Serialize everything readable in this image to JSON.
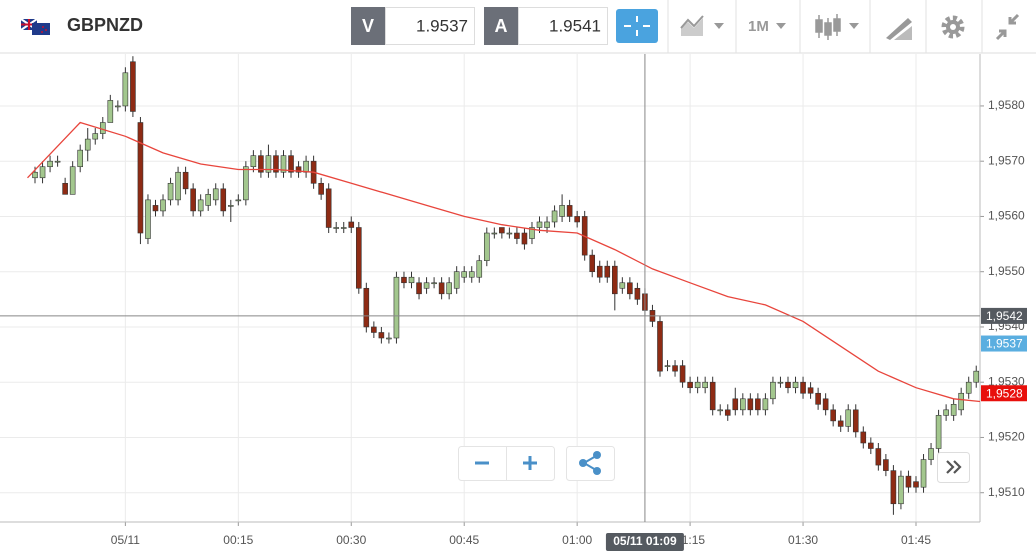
{
  "header": {
    "symbol": "GBPNZD",
    "bid_label": "V",
    "bid": 1.9537,
    "ask_label": "A",
    "ask": 1.9541,
    "timeframe": "1M"
  },
  "chart_data": {
    "type": "candlestick",
    "up_color": "#a3c78e",
    "down_color": "#8e2b14",
    "grid": true,
    "xlim": [
      -16.65,
      113.5
    ],
    "xticks": [
      {
        "value": 0,
        "label": "05/11"
      },
      {
        "value": 15,
        "label": "00:15"
      },
      {
        "value": 30,
        "label": "00:30"
      },
      {
        "value": 45,
        "label": "00:45"
      },
      {
        "value": 60,
        "label": "01:00"
      },
      {
        "value": 75,
        "label": "01:15"
      },
      {
        "value": 90,
        "label": "01:30"
      },
      {
        "value": 105,
        "label": "01:45"
      }
    ],
    "ylim": [
      1.95047,
      1.95894
    ],
    "yticks": [
      {
        "value": 1.951,
        "label": "1,9510"
      },
      {
        "value": 1.952,
        "label": "1,9520"
      },
      {
        "value": 1.953,
        "label": "1,9530"
      },
      {
        "value": 1.954,
        "label": "1,9540"
      },
      {
        "value": 1.955,
        "label": "1,9550"
      },
      {
        "value": 1.956,
        "label": "1,9560"
      },
      {
        "value": 1.957,
        "label": "1,9570"
      },
      {
        "value": 1.958,
        "label": "1,9580"
      }
    ],
    "x": [
      -12,
      -11,
      -10,
      -9,
      -8,
      -7,
      -6,
      -5,
      -4,
      -3,
      -2,
      -1,
      0,
      1,
      2,
      3,
      4,
      5,
      6,
      7,
      8,
      9,
      10,
      11,
      12,
      13,
      14,
      15,
      16,
      17,
      18,
      19,
      20,
      21,
      22,
      23,
      24,
      25,
      26,
      27,
      28,
      29,
      30,
      31,
      32,
      33,
      34,
      35,
      36,
      37,
      38,
      39,
      40,
      41,
      42,
      43,
      44,
      45,
      46,
      47,
      48,
      49,
      50,
      51,
      52,
      53,
      54,
      55,
      56,
      57,
      58,
      59,
      60,
      61,
      62,
      63,
      64,
      65,
      66,
      67,
      68,
      69,
      70,
      71,
      72,
      73,
      74,
      75,
      76,
      77,
      78,
      79,
      80,
      81,
      82,
      83,
      84,
      85,
      86,
      87,
      88,
      89,
      90,
      91,
      92,
      93,
      94,
      95,
      96,
      97,
      98,
      99,
      100,
      101,
      102,
      103,
      104,
      105,
      106,
      107,
      108,
      109,
      110,
      111,
      112,
      113
    ],
    "open": [
      1.9567,
      1.9567,
      1.9569,
      1.957,
      1.9566,
      1.9564,
      1.9569,
      1.9572,
      1.9574,
      1.9575,
      1.9577,
      1.958,
      1.958,
      1.9588,
      1.9577,
      1.9556,
      1.9562,
      1.9561,
      1.9563,
      1.9563,
      1.9568,
      1.9565,
      1.9561,
      1.9562,
      1.9563,
      1.9565,
      1.9562,
      1.9563,
      1.9563,
      1.9569,
      1.9571,
      1.9568,
      1.9571,
      1.9568,
      1.9571,
      1.9569,
      1.9568,
      1.957,
      1.9566,
      1.9565,
      1.9558,
      1.9558,
      1.9559,
      1.9558,
      1.9547,
      1.954,
      1.9539,
      1.9538,
      1.9538,
      1.9549,
      1.9548,
      1.9548,
      1.9547,
      1.9548,
      1.9548,
      1.9546,
      1.9547,
      1.9549,
      1.9549,
      1.9549,
      1.9552,
      1.9557,
      1.9558,
      1.9557,
      1.9557,
      1.9557,
      1.9556,
      1.9558,
      1.9558,
      1.9559,
      1.956,
      1.9562,
      1.956,
      1.956,
      1.9553,
      1.9551,
      1.9551,
      1.9551,
      1.9547,
      1.9548,
      1.9547,
      1.9546,
      1.9543,
      1.9541,
      1.9533,
      1.9533,
      1.9533,
      1.953,
      1.9529,
      1.9529,
      1.953,
      1.9525,
      1.9525,
      1.9527,
      1.9525,
      1.9527,
      1.9527,
      1.9525,
      1.9527,
      1.953,
      1.953,
      1.9529,
      1.953,
      1.9529,
      1.9528,
      1.9527,
      1.9525,
      1.9523,
      1.9522,
      1.9525,
      1.9521,
      1.9519,
      1.9518,
      1.9516,
      1.9514,
      1.9508,
      1.9513,
      1.9512,
      1.9511,
      1.9516,
      1.9518,
      1.9524,
      1.9524,
      1.9525,
      1.9528,
      1.953
    ],
    "high": [
      1.9569,
      1.957,
      1.9571,
      1.9571,
      1.9567,
      1.957,
      1.9573,
      1.9576,
      1.9576,
      1.9578,
      1.9582,
      1.9581,
      1.9587,
      1.9589,
      1.9578,
      1.9564,
      1.9563,
      1.9564,
      1.9567,
      1.9569,
      1.9569,
      1.9566,
      1.9564,
      1.9565,
      1.9566,
      1.9566,
      1.9563,
      1.9564,
      1.957,
      1.9572,
      1.9572,
      1.9573,
      1.9572,
      1.9572,
      1.9572,
      1.957,
      1.9571,
      1.9571,
      1.9567,
      1.9566,
      1.9559,
      1.9559,
      1.956,
      1.9559,
      1.9548,
      1.9541,
      1.954,
      1.9539,
      1.955,
      1.955,
      1.955,
      1.9549,
      1.9549,
      1.9549,
      1.9549,
      1.9549,
      1.9551,
      1.9551,
      1.9551,
      1.9553,
      1.9558,
      1.9558,
      1.9558,
      1.9558,
      1.9558,
      1.9558,
      1.9559,
      1.956,
      1.956,
      1.9562,
      1.9564,
      1.9563,
      1.9561,
      1.9561,
      1.9554,
      1.9552,
      1.9552,
      1.9552,
      1.9549,
      1.9549,
      1.9548,
      1.9547,
      1.9544,
      1.9542,
      1.9534,
      1.9534,
      1.9534,
      1.9531,
      1.9531,
      1.9531,
      1.9531,
      1.9526,
      1.9526,
      1.9529,
      1.9528,
      1.9528,
      1.9528,
      1.9528,
      1.9531,
      1.9531,
      1.9531,
      1.9531,
      1.9531,
      1.953,
      1.9529,
      1.9528,
      1.9526,
      1.9524,
      1.9526,
      1.9526,
      1.9522,
      1.952,
      1.9519,
      1.9517,
      1.9515,
      1.9514,
      1.9514,
      1.9513,
      1.9517,
      1.9519,
      1.9525,
      1.9526,
      1.9527,
      1.9529,
      1.9531,
      1.9533
    ],
    "low": [
      1.9566,
      1.9566,
      1.9568,
      1.9569,
      1.9564,
      1.9564,
      1.9568,
      1.957,
      1.9573,
      1.9574,
      1.9577,
      1.9579,
      1.9579,
      1.9578,
      1.9555,
      1.9555,
      1.956,
      1.956,
      1.9562,
      1.9562,
      1.9564,
      1.956,
      1.956,
      1.9561,
      1.9562,
      1.956,
      1.9559,
      1.9562,
      1.9562,
      1.9568,
      1.9567,
      1.9567,
      1.9567,
      1.9567,
      1.9567,
      1.9567,
      1.9567,
      1.9565,
      1.9563,
      1.9557,
      1.9557,
      1.9557,
      1.9557,
      1.9546,
      1.9539,
      1.9538,
      1.9537,
      1.9537,
      1.9537,
      1.9547,
      1.9547,
      1.9545,
      1.9546,
      1.9547,
      1.9545,
      1.9545,
      1.9546,
      1.9548,
      1.9548,
      1.9548,
      1.9551,
      1.9556,
      1.9556,
      1.9556,
      1.9555,
      1.9554,
      1.9555,
      1.9557,
      1.9557,
      1.9558,
      1.9559,
      1.9559,
      1.9558,
      1.9552,
      1.9549,
      1.9548,
      1.9548,
      1.9543,
      1.9546,
      1.9545,
      1.9544,
      1.9542,
      1.954,
      1.9531,
      1.9532,
      1.9531,
      1.9529,
      1.9528,
      1.9528,
      1.9528,
      1.9524,
      1.9524,
      1.9523,
      1.9524,
      1.9524,
      1.9524,
      1.9524,
      1.9524,
      1.9526,
      1.9529,
      1.9528,
      1.9528,
      1.9527,
      1.9527,
      1.9525,
      1.9524,
      1.9522,
      1.9521,
      1.9521,
      1.952,
      1.9518,
      1.9517,
      1.9514,
      1.9513,
      1.9506,
      1.9507,
      1.951,
      1.951,
      1.951,
      1.9515,
      1.9517,
      1.9523,
      1.9523,
      1.9524,
      1.9527,
      1.9529
    ],
    "close": [
      1.9568,
      1.9569,
      1.957,
      1.957,
      1.9564,
      1.9569,
      1.9572,
      1.9574,
      1.9575,
      1.9577,
      1.9581,
      1.958,
      1.9586,
      1.9579,
      1.9557,
      1.9563,
      1.9561,
      1.9563,
      1.9566,
      1.9568,
      1.9565,
      1.9561,
      1.9563,
      1.9564,
      1.9565,
      1.9561,
      1.9562,
      1.9563,
      1.9569,
      1.9571,
      1.9568,
      1.9571,
      1.9568,
      1.9571,
      1.9568,
      1.9568,
      1.957,
      1.9566,
      1.9564,
      1.9558,
      1.9558,
      1.9558,
      1.9558,
      1.9547,
      1.954,
      1.9539,
      1.9538,
      1.9538,
      1.9549,
      1.9548,
      1.9549,
      1.9546,
      1.9548,
      1.9548,
      1.9546,
      1.9548,
      1.955,
      1.955,
      1.955,
      1.9552,
      1.9557,
      1.9557,
      1.9557,
      1.9557,
      1.9556,
      1.9555,
      1.9558,
      1.9559,
      1.9559,
      1.9561,
      1.9562,
      1.956,
      1.9559,
      1.9553,
      1.955,
      1.9549,
      1.9549,
      1.9546,
      1.9548,
      1.9546,
      1.9545,
      1.9543,
      1.9541,
      1.9532,
      1.9533,
      1.9532,
      1.953,
      1.9529,
      1.953,
      1.953,
      1.9525,
      1.9525,
      1.9524,
      1.9525,
      1.9527,
      1.9525,
      1.9525,
      1.9527,
      1.953,
      1.953,
      1.9529,
      1.953,
      1.9528,
      1.9528,
      1.9526,
      1.9525,
      1.9523,
      1.9522,
      1.9525,
      1.9521,
      1.9519,
      1.9518,
      1.9515,
      1.9514,
      1.9508,
      1.9513,
      1.9511,
      1.9511,
      1.9516,
      1.9518,
      1.9524,
      1.9525,
      1.9526,
      1.9528,
      1.953,
      1.9532
    ],
    "ma": {
      "color": "#e8453c",
      "x": [
        -13,
        -6,
        0,
        5,
        10,
        15,
        20,
        25,
        30,
        35,
        40,
        45,
        50,
        55,
        60,
        65,
        70,
        75,
        80,
        85,
        90,
        95,
        100,
        105,
        110,
        113.5
      ],
      "values": [
        1.9567,
        1.9577,
        1.95745,
        1.95715,
        1.95695,
        1.95685,
        1.95685,
        1.9568,
        1.9566,
        1.9564,
        1.9562,
        1.956,
        1.95585,
        1.95575,
        1.9557,
        1.9554,
        1.95505,
        1.9548,
        1.95455,
        1.9544,
        1.9541,
        1.95365,
        1.9532,
        1.9529,
        1.9527,
        1.95265
      ]
    },
    "crosshair": {
      "y": {
        "value": 1.9542,
        "label": "1,9542"
      },
      "x": {
        "value": 69,
        "label": "05/11 01:09"
      }
    },
    "price_labels": [
      {
        "value": 1.9537,
        "label": "1,9537",
        "color": "#5aaee0"
      },
      {
        "value": 1.9528,
        "label": "1,9528",
        "color": "#e8100c"
      }
    ]
  }
}
